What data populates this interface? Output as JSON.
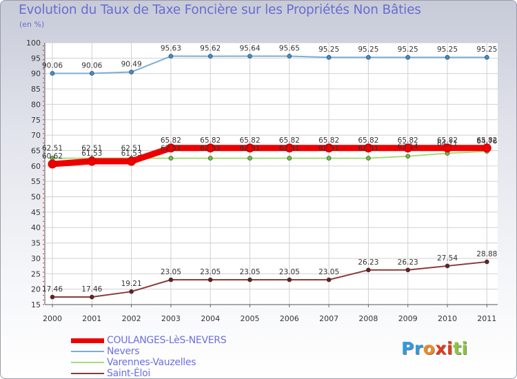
{
  "title": "Evolution du Taux de Taxe Foncière sur les Propriétés Non Bâties",
  "unit": "(en %)",
  "logo": {
    "text": "Proxiti",
    "letters": [
      "P",
      "r",
      "o",
      "x",
      "i",
      "t",
      "i"
    ],
    "colors": [
      "#2f9be0",
      "#2f9be0",
      "#f08a24",
      "#e23a1a",
      "#e23a1a",
      "#8cc63f",
      "#8cc63f"
    ]
  },
  "chart_data": {
    "type": "line",
    "title": "Evolution du Taux de Taxe Foncière sur les Propriétés Non Bâties",
    "ylabel": "(en %)",
    "xlabel": "",
    "ylim": [
      15,
      100
    ],
    "yticks": [
      15,
      20,
      25,
      30,
      35,
      40,
      45,
      50,
      55,
      60,
      65,
      70,
      75,
      80,
      85,
      90,
      95,
      100
    ],
    "categories": [
      "2000",
      "2001",
      "2002",
      "2003",
      "2004",
      "2005",
      "2006",
      "2007",
      "2008",
      "2009",
      "2010",
      "2011"
    ],
    "grid": true,
    "legend_position": "bottom-left",
    "series": [
      {
        "name": "COULANGES-LèS-NEVERS",
        "color": "#ee0000",
        "marker": "#ee0000",
        "width": 9,
        "radius": 6,
        "values": [
          60.62,
          61.53,
          61.53,
          65.82,
          65.82,
          65.82,
          65.82,
          65.82,
          65.82,
          65.82,
          65.82,
          65.82
        ],
        "labels": [
          "60.62",
          "61.53",
          "61.53",
          "65.82",
          "65.82",
          "65.82",
          "65.82",
          "65.82",
          "65.82",
          "65.82",
          "65.82",
          "65.82"
        ]
      },
      {
        "name": "Nevers",
        "color": "#7aaed6",
        "marker": "#3b8fd0",
        "width": 2,
        "radius": 3,
        "values": [
          90.06,
          90.06,
          90.49,
          95.63,
          95.62,
          95.64,
          95.65,
          95.25,
          95.25,
          95.25,
          95.25,
          95.25
        ],
        "labels": [
          "90.06",
          "90.06",
          "90.49",
          "95.63",
          "95.62",
          "95.64",
          "95.65",
          "95.25",
          "95.25",
          "95.25",
          "95.25",
          "95.25"
        ]
      },
      {
        "name": "Varennes-Vauzelles",
        "color": "#a6dc7a",
        "marker": "#6cc03a",
        "width": 2,
        "radius": 3,
        "values": [
          62.51,
          62.51,
          62.51,
          62.51,
          62.51,
          62.51,
          62.51,
          62.51,
          62.51,
          63.14,
          64.11,
          64.76
        ],
        "labels": [
          "62.51",
          "62.51",
          "62.51",
          "62.51",
          "62.51",
          "62.51",
          "62.51",
          "62.51",
          "62.51",
          "63.14",
          "64.11",
          "64.76"
        ]
      },
      {
        "name": "Saint-Éloi",
        "color": "#8a3a3a",
        "marker": "#6b1f1f",
        "width": 2,
        "radius": 3,
        "values": [
          17.46,
          17.46,
          19.21,
          23.05,
          23.05,
          23.05,
          23.05,
          23.05,
          26.23,
          26.23,
          27.54,
          28.88
        ],
        "labels": [
          "17.46",
          "17.46",
          "19.21",
          "23.05",
          "23.05",
          "23.05",
          "23.05",
          "23.05",
          "26.23",
          "26.23",
          "27.54",
          "28.88"
        ]
      }
    ]
  }
}
